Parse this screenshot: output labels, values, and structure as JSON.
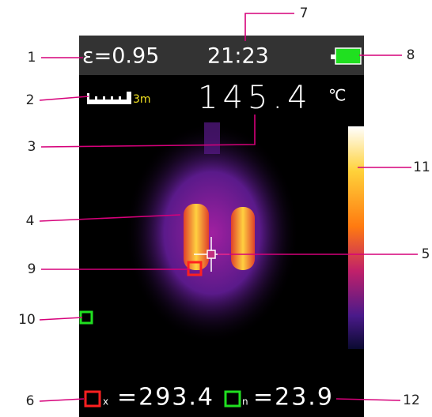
{
  "header": {
    "emissivity": "ε=0.95",
    "time": "21:23"
  },
  "readout": {
    "distance": "3m",
    "temperature": "145.4",
    "unit": "℃"
  },
  "footer": {
    "max_mark": "x",
    "max_value": "=293.4",
    "min_mark": "n",
    "min_value": "=23.9"
  },
  "callouts": [
    "1",
    "2",
    "3",
    "4",
    "5",
    "6",
    "7",
    "8",
    "9",
    "10",
    "11",
    "12"
  ]
}
